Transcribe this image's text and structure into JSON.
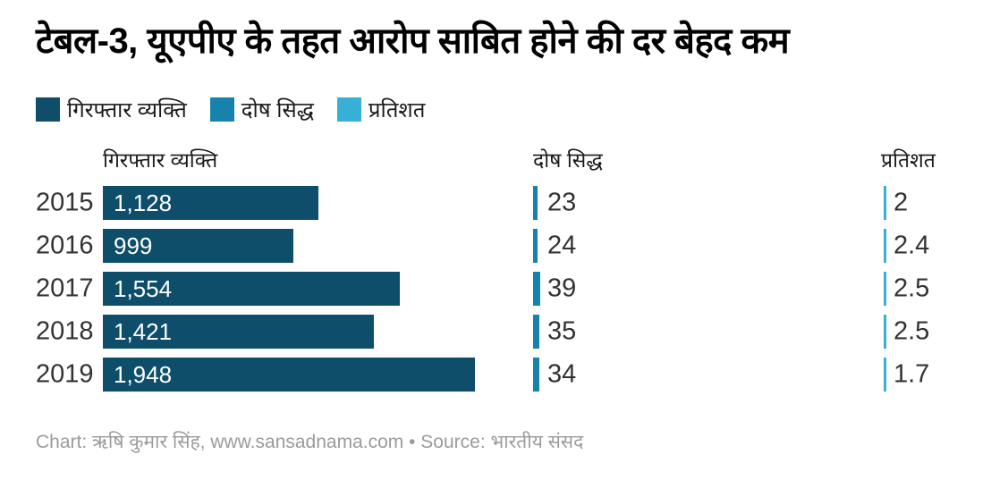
{
  "title": "टेबल-3, यूएपीए के तहत आरोप साबित होने की दर बेहद कम",
  "colors": {
    "arrested": "#0e4e6b",
    "convicted": "#1583ab",
    "percent": "#38afd6"
  },
  "legend": [
    {
      "label": "गिरफ्तार व्यक्ति",
      "color": "#0e4e6b"
    },
    {
      "label": "दोष सिद्ध",
      "color": "#1583ab"
    },
    {
      "label": "प्रतिशत",
      "color": "#38afd6"
    }
  ],
  "columns": [
    "गिरफ्तार व्यक्ति",
    "दोष सिद्ध",
    "प्रतिशत"
  ],
  "footer": "Chart: ऋषि कुमार सिंह, www.sansadnama.com • Source: भारतीय संसद",
  "chart_data": {
    "type": "bar",
    "orientation": "horizontal",
    "title": "टेबल-3, यूएपीए के तहत आरोप साबित होने की दर बेहद कम",
    "categories": [
      "2015",
      "2016",
      "2017",
      "2018",
      "2019"
    ],
    "series": [
      {
        "name": "गिरफ्तार व्यक्ति",
        "values": [
          1128,
          999,
          1554,
          1421,
          1948
        ],
        "labels": [
          "1,128",
          "999",
          "1,554",
          "1,421",
          "1,948"
        ]
      },
      {
        "name": "दोष सिद्ध",
        "values": [
          23,
          24,
          39,
          35,
          34
        ],
        "labels": [
          "23",
          "24",
          "39",
          "35",
          "34"
        ]
      },
      {
        "name": "प्रतिशत",
        "values": [
          2,
          2.4,
          2.5,
          2.5,
          1.7
        ],
        "labels": [
          "2",
          "2.4",
          "2.5",
          "2.5",
          "1.7"
        ]
      }
    ],
    "max_value": 1948,
    "grid": false,
    "legend_position": "top"
  }
}
